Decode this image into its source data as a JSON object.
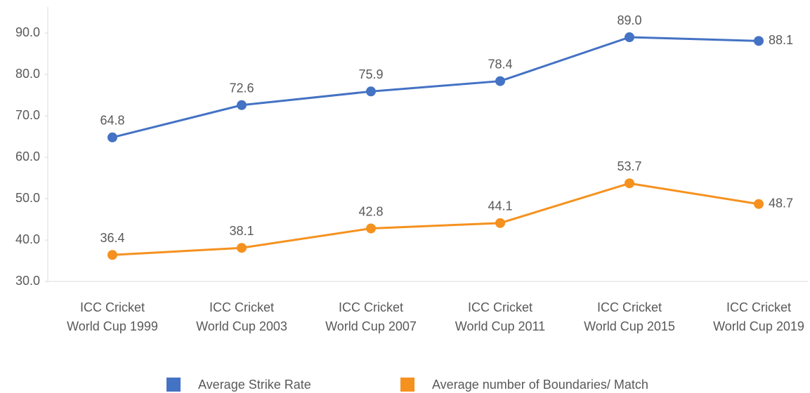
{
  "chart_data": {
    "type": "line",
    "categories": [
      "ICC Cricket World Cup 1999",
      "ICC Cricket World Cup 2003",
      "ICC Cricket World Cup 2007",
      "ICC Cricket World Cup 2011",
      "ICC Cricket World Cup 2015",
      "ICC Cricket World Cup 2019"
    ],
    "series": [
      {
        "name": "Average Strike Rate",
        "color": "#4472c4",
        "values": [
          64.8,
          72.6,
          75.9,
          78.4,
          89.0,
          88.1
        ],
        "value_labels": [
          "64.8",
          "72.6",
          "75.9",
          "78.4",
          "89.0",
          "88.1"
        ]
      },
      {
        "name": "Average number of Boundaries/ Match",
        "color": "#f5911e",
        "values": [
          36.4,
          38.1,
          42.8,
          44.1,
          53.7,
          48.7
        ],
        "value_labels": [
          "36.4",
          "38.1",
          "42.8",
          "44.1",
          "53.7",
          "48.7"
        ]
      }
    ],
    "ylim": [
      30,
      96.3
    ],
    "yticks": [
      {
        "value": 30,
        "label": "30.0"
      },
      {
        "value": 40,
        "label": "40.0"
      },
      {
        "value": 50,
        "label": "50.0"
      },
      {
        "value": 60,
        "label": "60.0"
      },
      {
        "value": 70,
        "label": "70.0"
      },
      {
        "value": 80,
        "label": "80.0"
      },
      {
        "value": 90,
        "label": "90.0"
      }
    ],
    "grid": false,
    "legend": "bottom"
  }
}
